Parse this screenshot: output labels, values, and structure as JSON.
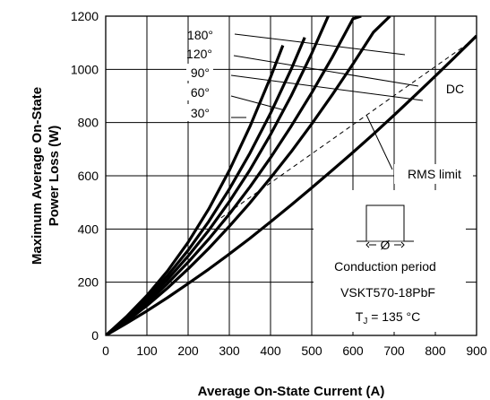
{
  "chart_data": {
    "type": "line",
    "title": "",
    "xlabel": "Average On-State Current (A)",
    "ylabel": "Maximum Average On-State Power Loss (W)",
    "xlim": [
      0,
      900
    ],
    "ylim": [
      0,
      1200
    ],
    "xticks": [
      0,
      100,
      200,
      300,
      400,
      500,
      600,
      700,
      800,
      900
    ],
    "yticks": [
      0,
      200,
      400,
      600,
      800,
      1000,
      1200
    ],
    "grid": true,
    "legend": "none",
    "series": [
      {
        "name": "180°",
        "x": [
          0,
          50,
          100,
          150,
          200,
          250,
          300,
          350,
          400,
          430
        ],
        "y": [
          0,
          70,
          150,
          242,
          350,
          475,
          620,
          785,
          970,
          1090
        ]
      },
      {
        "name": "120°",
        "x": [
          0,
          50,
          100,
          150,
          200,
          250,
          300,
          350,
          400,
          450,
          483
        ],
        "y": [
          0,
          65,
          140,
          225,
          320,
          428,
          550,
          685,
          835,
          1000,
          1120
        ]
      },
      {
        "name": "90°",
        "x": [
          0,
          50,
          100,
          150,
          200,
          250,
          300,
          350,
          400,
          450,
          500,
          540
        ],
        "y": [
          0,
          60,
          132,
          210,
          298,
          395,
          503,
          622,
          755,
          900,
          1060,
          1200
        ]
      },
      {
        "name": "60°",
        "x": [
          0,
          50,
          100,
          150,
          200,
          250,
          300,
          350,
          400,
          450,
          500,
          550,
          600,
          620
        ],
        "y": [
          0,
          57,
          122,
          195,
          275,
          362,
          456,
          558,
          668,
          786,
          912,
          1046,
          1190,
          1200
        ]
      },
      {
        "name": "30°",
        "x": [
          0,
          50,
          100,
          150,
          200,
          250,
          300,
          350,
          400,
          450,
          500,
          550,
          600,
          650,
          690
        ],
        "y": [
          0,
          52,
          112,
          178,
          250,
          327,
          410,
          498,
          592,
          690,
          795,
          905,
          1020,
          1140,
          1200
        ]
      },
      {
        "name": "DC",
        "x": [
          0,
          50,
          100,
          150,
          200,
          250,
          300,
          350,
          400,
          450,
          500,
          550,
          600,
          650,
          700,
          750,
          800,
          850,
          900
        ],
        "y": [
          0,
          45,
          92,
          142,
          195,
          249,
          306,
          365,
          427,
          490,
          555,
          621,
          688,
          757,
          828,
          901,
          975,
          1050,
          1126
        ]
      }
    ],
    "rms_limit": {
      "x": [
        280,
        900
      ],
      "y": [
        442,
        1120
      ]
    },
    "annotations": {
      "rms_limit": "RMS limit",
      "conduction_period": "Conduction period",
      "phi": "Ø",
      "part_number": "VSKT570-18PbF",
      "tj_prefix": "T",
      "tj_sub": "J",
      "tj_suffix": " = 135 °C"
    }
  }
}
